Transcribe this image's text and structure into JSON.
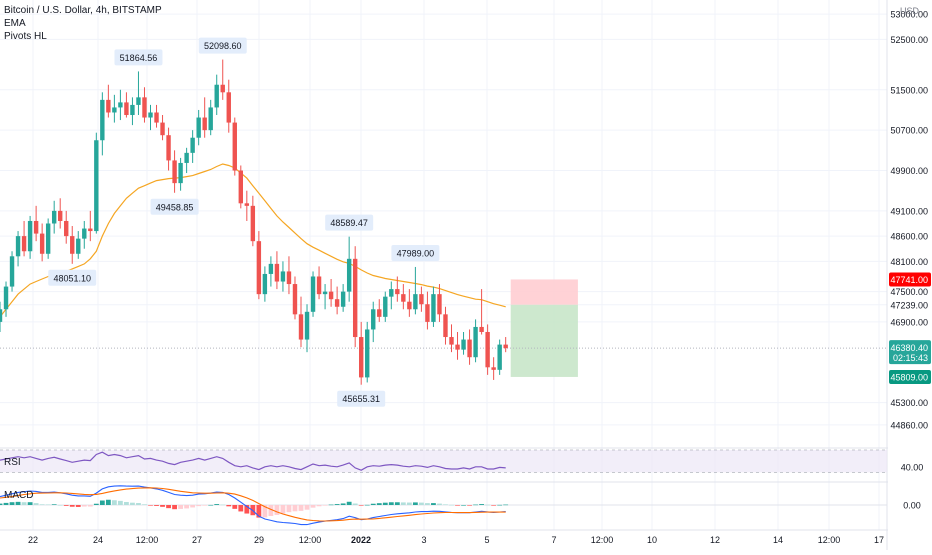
{
  "header": {
    "title": "Bitcoin / U.S. Dollar, 4h, BITSTAMP",
    "indicators": [
      "EMA",
      "Pivots HL"
    ]
  },
  "price_axis": {
    "currency": "USD",
    "ticks": [
      "53000.00",
      "52500.00",
      "51500.00",
      "50700.00",
      "49900.00",
      "49100.00",
      "48600.00",
      "48100.00",
      "47500.00",
      "47239.00",
      "46900.00",
      "45300.00",
      "44860.00"
    ],
    "tick_values": [
      53000,
      52500,
      51500,
      50700,
      49900,
      49100,
      48600,
      48100,
      47500,
      47239,
      46900,
      45300,
      44860
    ],
    "stop_loss_label": "47741.00",
    "current_price_label": "46380.40",
    "countdown": "02:15:43",
    "take_profit_label": "45809.00"
  },
  "rsi_panel": {
    "label": "RSI",
    "axis_value": "40.00"
  },
  "macd_panel": {
    "label": "MACD",
    "axis_value": "0.00"
  },
  "time_axis": {
    "ticks": [
      "22",
      "24",
      "12:00",
      "27",
      "29",
      "12:00",
      "2022",
      "3",
      "5",
      "7",
      "12:00",
      "10",
      "12",
      "14",
      "12:00",
      "17"
    ]
  },
  "colors": {
    "up": "#26a69a",
    "down": "#ef5350",
    "ema": "#f5a623",
    "rsi": "#7e57c2",
    "macd": "#2962ff",
    "signal": "#ff6d00",
    "stop": "#ff0000",
    "target": "#089981",
    "current": "#26a69a"
  },
  "chart_data": {
    "type": "candlestick",
    "title": "Bitcoin / U.S. Dollar, 4h, BITSTAMP",
    "candles": [
      {
        "o": 46900,
        "h": 47300,
        "l": 46700,
        "c": 47150
      },
      {
        "o": 47150,
        "h": 47700,
        "l": 47000,
        "c": 47600
      },
      {
        "o": 47600,
        "h": 48300,
        "l": 47500,
        "c": 48200
      },
      {
        "o": 48200,
        "h": 48700,
        "l": 48000,
        "c": 48600
      },
      {
        "o": 48600,
        "h": 48900,
        "l": 48200,
        "c": 48300
      },
      {
        "o": 48300,
        "h": 49000,
        "l": 48150,
        "c": 48900
      },
      {
        "o": 48900,
        "h": 49200,
        "l": 48500,
        "c": 48650
      },
      {
        "o": 48650,
        "h": 48850,
        "l": 48100,
        "c": 48250
      },
      {
        "o": 48250,
        "h": 48950,
        "l": 48150,
        "c": 48850
      },
      {
        "o": 48850,
        "h": 49300,
        "l": 48650,
        "c": 49100
      },
      {
        "o": 49100,
        "h": 49350,
        "l": 48750,
        "c": 48900
      },
      {
        "o": 48900,
        "h": 49100,
        "l": 48450,
        "c": 48600
      },
      {
        "o": 48600,
        "h": 48800,
        "l": 48051,
        "c": 48250
      },
      {
        "o": 48250,
        "h": 48700,
        "l": 48150,
        "c": 48550
      },
      {
        "o": 48550,
        "h": 48900,
        "l": 48350,
        "c": 48750
      },
      {
        "o": 48750,
        "h": 49100,
        "l": 48500,
        "c": 48700
      },
      {
        "o": 48700,
        "h": 50650,
        "l": 48650,
        "c": 50500
      },
      {
        "o": 50500,
        "h": 51450,
        "l": 50200,
        "c": 51300
      },
      {
        "o": 51300,
        "h": 51600,
        "l": 50950,
        "c": 51050
      },
      {
        "o": 51050,
        "h": 51400,
        "l": 50850,
        "c": 51150
      },
      {
        "o": 51150,
        "h": 51500,
        "l": 50900,
        "c": 51250
      },
      {
        "o": 51250,
        "h": 51450,
        "l": 50950,
        "c": 51000
      },
      {
        "o": 51000,
        "h": 51350,
        "l": 50800,
        "c": 51200
      },
      {
        "o": 51200,
        "h": 51864,
        "l": 51000,
        "c": 51350
      },
      {
        "o": 51350,
        "h": 51550,
        "l": 50850,
        "c": 50950
      },
      {
        "o": 50950,
        "h": 51200,
        "l": 50700,
        "c": 51050
      },
      {
        "o": 51050,
        "h": 51200,
        "l": 50750,
        "c": 50850
      },
      {
        "o": 50850,
        "h": 51000,
        "l": 50500,
        "c": 50600
      },
      {
        "o": 50600,
        "h": 50750,
        "l": 49900,
        "c": 50100
      },
      {
        "o": 50100,
        "h": 50300,
        "l": 49459,
        "c": 49650
      },
      {
        "o": 49650,
        "h": 50150,
        "l": 49500,
        "c": 50050
      },
      {
        "o": 50050,
        "h": 50350,
        "l": 49850,
        "c": 50250
      },
      {
        "o": 50250,
        "h": 50700,
        "l": 50050,
        "c": 50550
      },
      {
        "o": 50550,
        "h": 51100,
        "l": 50400,
        "c": 50950
      },
      {
        "o": 50950,
        "h": 51350,
        "l": 50550,
        "c": 50700
      },
      {
        "o": 50700,
        "h": 51300,
        "l": 50600,
        "c": 51150
      },
      {
        "o": 51150,
        "h": 51800,
        "l": 51000,
        "c": 51600
      },
      {
        "o": 51600,
        "h": 52099,
        "l": 51300,
        "c": 51450
      },
      {
        "o": 51450,
        "h": 51700,
        "l": 50650,
        "c": 50850
      },
      {
        "o": 50850,
        "h": 50950,
        "l": 49800,
        "c": 49900
      },
      {
        "o": 49900,
        "h": 50000,
        "l": 49150,
        "c": 49250
      },
      {
        "o": 49250,
        "h": 49500,
        "l": 48900,
        "c": 49200
      },
      {
        "o": 49200,
        "h": 49400,
        "l": 48400,
        "c": 48500
      },
      {
        "o": 48500,
        "h": 48700,
        "l": 47350,
        "c": 47450
      },
      {
        "o": 47450,
        "h": 48000,
        "l": 47300,
        "c": 47850
      },
      {
        "o": 47850,
        "h": 48200,
        "l": 47600,
        "c": 48050
      },
      {
        "o": 48050,
        "h": 48300,
        "l": 47550,
        "c": 47700
      },
      {
        "o": 47700,
        "h": 48100,
        "l": 47500,
        "c": 47900
      },
      {
        "o": 47900,
        "h": 48200,
        "l": 47450,
        "c": 47650
      },
      {
        "o": 47650,
        "h": 47800,
        "l": 46950,
        "c": 47050
      },
      {
        "o": 47050,
        "h": 47400,
        "l": 46400,
        "c": 46550
      },
      {
        "o": 46550,
        "h": 47250,
        "l": 46300,
        "c": 47100
      },
      {
        "o": 47100,
        "h": 47900,
        "l": 47000,
        "c": 47800
      },
      {
        "o": 47800,
        "h": 48000,
        "l": 47350,
        "c": 47450
      },
      {
        "o": 47450,
        "h": 47650,
        "l": 47150,
        "c": 47500
      },
      {
        "o": 47500,
        "h": 47750,
        "l": 47200,
        "c": 47350
      },
      {
        "o": 47350,
        "h": 47600,
        "l": 47050,
        "c": 47200
      },
      {
        "o": 47200,
        "h": 47650,
        "l": 47100,
        "c": 47500
      },
      {
        "o": 47500,
        "h": 48589,
        "l": 47300,
        "c": 48150
      },
      {
        "o": 48150,
        "h": 48400,
        "l": 46400,
        "c": 46600
      },
      {
        "o": 46600,
        "h": 46900,
        "l": 45655,
        "c": 45800
      },
      {
        "o": 45800,
        "h": 46900,
        "l": 45700,
        "c": 46750
      },
      {
        "o": 46750,
        "h": 47300,
        "l": 46500,
        "c": 47150
      },
      {
        "o": 47150,
        "h": 47350,
        "l": 46900,
        "c": 47000
      },
      {
        "o": 47000,
        "h": 47500,
        "l": 46900,
        "c": 47400
      },
      {
        "o": 47400,
        "h": 47700,
        "l": 47150,
        "c": 47550
      },
      {
        "o": 47550,
        "h": 47800,
        "l": 47300,
        "c": 47450
      },
      {
        "o": 47450,
        "h": 47650,
        "l": 47150,
        "c": 47300
      },
      {
        "o": 47300,
        "h": 47550,
        "l": 47000,
        "c": 47150
      },
      {
        "o": 47150,
        "h": 47989,
        "l": 47050,
        "c": 47450
      },
      {
        "o": 47450,
        "h": 47600,
        "l": 47100,
        "c": 47250
      },
      {
        "o": 47250,
        "h": 47500,
        "l": 46750,
        "c": 46900
      },
      {
        "o": 46900,
        "h": 47600,
        "l": 46800,
        "c": 47450
      },
      {
        "o": 47450,
        "h": 47650,
        "l": 46900,
        "c": 47050
      },
      {
        "o": 47050,
        "h": 47200,
        "l": 46450,
        "c": 46600
      },
      {
        "o": 46600,
        "h": 46850,
        "l": 46300,
        "c": 46450
      },
      {
        "o": 46450,
        "h": 46700,
        "l": 46150,
        "c": 46350
      },
      {
        "o": 46350,
        "h": 46700,
        "l": 46250,
        "c": 46550
      },
      {
        "o": 46550,
        "h": 46750,
        "l": 46050,
        "c": 46200
      },
      {
        "o": 46200,
        "h": 46950,
        "l": 46100,
        "c": 46800
      },
      {
        "o": 46800,
        "h": 47550,
        "l": 46650,
        "c": 46700
      },
      {
        "o": 46700,
        "h": 46850,
        "l": 45850,
        "c": 46000
      },
      {
        "o": 46000,
        "h": 46200,
        "l": 45750,
        "c": 45950
      },
      {
        "o": 45950,
        "h": 46550,
        "l": 45850,
        "c": 46450
      },
      {
        "o": 46450,
        "h": 46600,
        "l": 46300,
        "c": 46380
      }
    ],
    "ema": [
      47000,
      47150,
      47300,
      47450,
      47550,
      47650,
      47700,
      47750,
      47800,
      47850,
      47880,
      47900,
      47950,
      48000,
      48050,
      48150,
      48300,
      48600,
      48850,
      49050,
      49200,
      49350,
      49450,
      49550,
      49600,
      49650,
      49700,
      49720,
      49740,
      49750,
      49760,
      49780,
      49800,
      49840,
      49880,
      49920,
      49980,
      50030,
      50000,
      49950,
      49850,
      49750,
      49600,
      49450,
      49300,
      49150,
      49000,
      48880,
      48770,
      48660,
      48550,
      48450,
      48380,
      48320,
      48260,
      48200,
      48140,
      48090,
      48060,
      48000,
      47930,
      47870,
      47820,
      47790,
      47760,
      47740,
      47720,
      47700,
      47680,
      47660,
      47640,
      47610,
      47590,
      47560,
      47520,
      47480,
      47440,
      47410,
      47380,
      47350,
      47340,
      47300,
      47260,
      47230,
      47200
    ],
    "pivots": [
      {
        "index": 12,
        "price": 48051.1,
        "label": "48051.10",
        "pos": "below"
      },
      {
        "index": 23,
        "price": 51864.56,
        "label": "51864.56",
        "pos": "above"
      },
      {
        "index": 29,
        "price": 49458.85,
        "label": "49458.85",
        "pos": "below"
      },
      {
        "index": 37,
        "price": 52098.6,
        "label": "52098.60",
        "pos": "above"
      },
      {
        "index": 58,
        "price": 48589.47,
        "label": "48589.47",
        "pos": "above"
      },
      {
        "index": 60,
        "price": 45655.31,
        "label": "45655.31",
        "pos": "below"
      },
      {
        "index": 69,
        "price": 47989.0,
        "label": "47989.00",
        "pos": "above"
      }
    ],
    "position": {
      "entry": 47239,
      "stop": 47741,
      "target": 45809,
      "start_index": 85,
      "end_index": 96
    },
    "current_price": 46380.4,
    "rsi": [
      52,
      54,
      56,
      58,
      56,
      58,
      55,
      52,
      55,
      57,
      54,
      51,
      48,
      50,
      52,
      51,
      62,
      66,
      60,
      62,
      60,
      56,
      58,
      60,
      54,
      55,
      52,
      50,
      46,
      44,
      48,
      50,
      52,
      55,
      52,
      55,
      58,
      55,
      48,
      42,
      40,
      42,
      38,
      35,
      40,
      42,
      40,
      42,
      40,
      37,
      35,
      40,
      45,
      42,
      43,
      41,
      40,
      43,
      47,
      38,
      34,
      40,
      42,
      41,
      43,
      44,
      43,
      41,
      40,
      42,
      41,
      39,
      42,
      40,
      37,
      36,
      36,
      38,
      36,
      40,
      40,
      36,
      36,
      39,
      38
    ],
    "macd": [
      120,
      140,
      160,
      180,
      190,
      200,
      195,
      180,
      180,
      185,
      175,
      160,
      140,
      130,
      130,
      125,
      170,
      230,
      260,
      270,
      275,
      270,
      268,
      270,
      255,
      245,
      230,
      210,
      180,
      150,
      140,
      135,
      140,
      155,
      160,
      170,
      185,
      180,
      150,
      100,
      40,
      -20,
      -80,
      -160,
      -200,
      -220,
      -240,
      -250,
      -255,
      -265,
      -280,
      -280,
      -260,
      -245,
      -230,
      -220,
      -210,
      -195,
      -160,
      -180,
      -210,
      -200,
      -180,
      -165,
      -150,
      -135,
      -125,
      -118,
      -112,
      -100,
      -95,
      -95,
      -88,
      -90,
      -98,
      -105,
      -110,
      -108,
      -110,
      -100,
      -90,
      -98,
      -105,
      -100,
      -95
    ],
    "signal": [
      100,
      110,
      120,
      135,
      150,
      160,
      168,
      170,
      172,
      175,
      175,
      172,
      165,
      158,
      152,
      147,
      152,
      166,
      185,
      202,
      216,
      227,
      235,
      242,
      245,
      246,
      243,
      236,
      225,
      210,
      196,
      184,
      175,
      171,
      169,
      169,
      172,
      174,
      169,
      155,
      132,
      102,
      66,
      20,
      -24,
      -63,
      -98,
      -128,
      -153,
      -175,
      -196,
      -213,
      -222,
      -227,
      -228,
      -226,
      -223,
      -217,
      -206,
      -201,
      -203,
      -202,
      -198,
      -191,
      -183,
      -174,
      -164,
      -155,
      -147,
      -137,
      -129,
      -122,
      -115,
      -110,
      -107,
      -107,
      -108,
      -108,
      -108,
      -106,
      -103,
      -102,
      -102,
      -102,
      -101
    ]
  }
}
